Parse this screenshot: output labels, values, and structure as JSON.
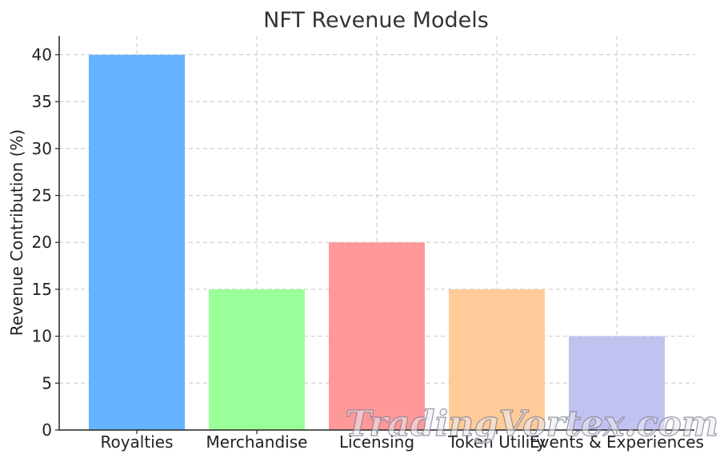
{
  "chart_data": {
    "type": "bar",
    "title": "NFT Revenue Models",
    "xlabel": "",
    "ylabel": "Revenue Contribution (%)",
    "categories": [
      "Royalties",
      "Merchandise",
      "Licensing",
      "Token Utility",
      "Events & Experiences"
    ],
    "values": [
      40,
      15,
      20,
      15,
      10
    ],
    "colors": [
      "#66b3ff",
      "#99ff99",
      "#ff9999",
      "#ffcc99",
      "#c2c2f0"
    ],
    "ylim": [
      0,
      42
    ],
    "yticks": [
      0,
      5,
      10,
      15,
      20,
      25,
      30,
      35,
      40
    ],
    "grid": true
  },
  "watermark": "TradingVortex.com"
}
